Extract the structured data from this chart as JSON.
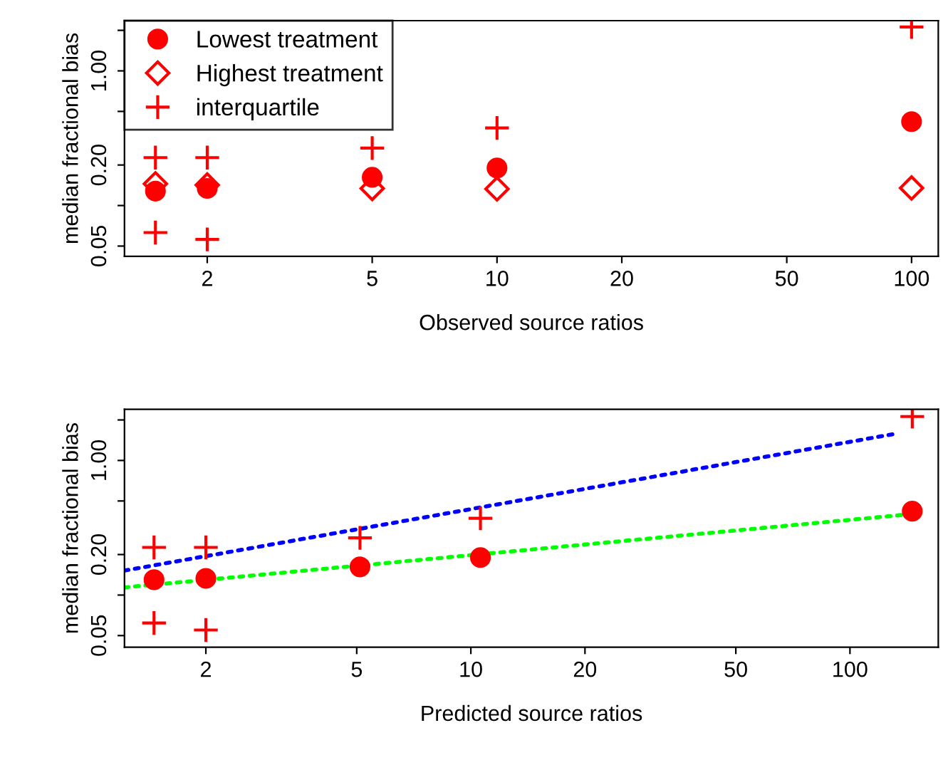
{
  "chart_data": [
    {
      "type": "scatter",
      "xlabel": "Observed source ratios",
      "ylabel": "median fractional bias",
      "log": "xy",
      "legend": "top left",
      "grid": false,
      "xlim": [
        1.263,
        116
      ],
      "xticks": [
        2,
        5,
        10,
        20,
        50,
        100
      ],
      "ylim": [
        0.042,
        2.36
      ],
      "yticks": [
        0.05,
        {
          "value": 0.1,
          "label": null
        },
        {
          "value": 0.2,
          "label": "0.20"
        },
        {
          "value": 0.5,
          "label": null
        },
        {
          "value": 1,
          "label": "1.00"
        },
        {
          "value": 2,
          "label": null
        }
      ],
      "series": [
        {
          "name": "Lowest treatment",
          "color": "#ff0000",
          "marker": "circle",
          "x": [
            1.5,
            2,
            5,
            10,
            100
          ],
          "values": [
            0.128,
            0.134,
            0.162,
            0.19,
            0.42
          ]
        },
        {
          "name": "Highest treatment",
          "color": "#ff0000",
          "marker": "diamond",
          "x": [
            1.5,
            2,
            5,
            10,
            100
          ],
          "values": [
            0.145,
            0.142,
            0.134,
            0.133,
            0.135
          ]
        },
        {
          "name": "interquartile",
          "color": "#ff0000",
          "marker": "cross",
          "x": [
            1.5,
            2,
            5,
            10,
            100,
            1.5,
            2
          ],
          "values": [
            0.227,
            0.227,
            0.267,
            0.377,
            2.12,
            0.063,
            0.056
          ]
        }
      ]
    },
    {
      "type": "scatter",
      "xlabel": "Predicted source ratios",
      "ylabel": "median fractional bias",
      "log": "xy",
      "grid": false,
      "xlim": [
        1.22,
        171
      ],
      "xticks": [
        2,
        5,
        10,
        20,
        50,
        100
      ],
      "ylim": [
        0.041,
        2.4
      ],
      "yticks": [
        0.05,
        {
          "value": 0.1,
          "label": null
        },
        {
          "value": 0.2,
          "label": "0.20"
        },
        {
          "value": 0.5,
          "label": null
        },
        {
          "value": 1,
          "label": "1.00"
        },
        {
          "value": 2,
          "label": null
        }
      ],
      "series": [
        {
          "type": "line",
          "color": "#0000ff",
          "line_style": "dotted",
          "x": [
            1.22,
            132
          ],
          "values": [
            0.152,
            1.58
          ]
        },
        {
          "type": "line",
          "color": "#00ff00",
          "line_style": "dotted",
          "x": [
            1.22,
            146
          ],
          "values": [
            0.114,
            0.4
          ]
        },
        {
          "color": "#ff0000",
          "marker": "circle",
          "x": [
            1.46,
            2,
            5.1,
            10.6,
            146
          ],
          "values": [
            0.13,
            0.133,
            0.162,
            0.19,
            0.42
          ]
        },
        {
          "color": "#ff0000",
          "marker": "cross",
          "x": [
            1.46,
            2,
            5.1,
            10.6,
            146,
            1.46,
            2
          ],
          "values": [
            0.226,
            0.226,
            0.266,
            0.372,
            2.12,
            0.062,
            0.055
          ]
        }
      ]
    }
  ]
}
